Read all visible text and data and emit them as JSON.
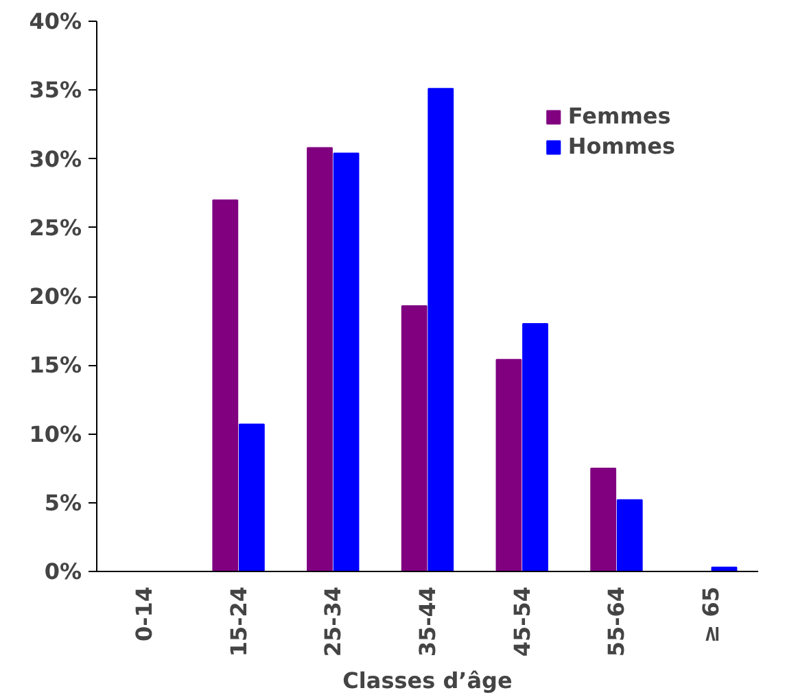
{
  "chart_data": {
    "type": "bar",
    "xlabel": "Classes d’âge",
    "categories": [
      "0-14",
      "15-24",
      "25-34",
      "35-44",
      "45-54",
      "55-64",
      "≥ 65"
    ],
    "series": [
      {
        "name": "Femmes",
        "color": "#800080",
        "values": [
          0,
          27.0,
          30.8,
          19.3,
          15.4,
          7.5,
          0
        ]
      },
      {
        "name": "Hommes",
        "color": "#0000ff",
        "values": [
          0,
          10.7,
          30.4,
          35.1,
          18.0,
          5.2,
          0.3
        ]
      }
    ],
    "ylim": [
      0,
      40
    ],
    "yticks": [
      {
        "value": 0,
        "label": "0%"
      },
      {
        "value": 5,
        "label": "5%"
      },
      {
        "value": 10,
        "label": "10%"
      },
      {
        "value": 15,
        "label": "15%"
      },
      {
        "value": 20,
        "label": "20%"
      },
      {
        "value": 25,
        "label": "25%"
      },
      {
        "value": 30,
        "label": "30%"
      },
      {
        "value": 35,
        "label": "35%"
      },
      {
        "value": 40,
        "label": "40%"
      }
    ],
    "grid": false,
    "legend": "top right"
  }
}
